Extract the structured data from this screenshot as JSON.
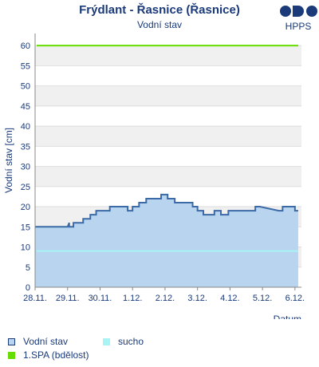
{
  "header": {
    "title": "Frýdlant - Řasnice (Řasnice)",
    "subtitle": "Vodní stav",
    "logo_text": "HPPS"
  },
  "colors": {
    "line": "#3b6aa6",
    "fill": "#b8d4ee",
    "sucho": "#a8f4f4",
    "spa": "#66dd00",
    "band": "#f0f0f0",
    "text": "#1a3a7a"
  },
  "chart_data": {
    "type": "area",
    "title": "Frýdlant - Řasnice (Řasnice)",
    "subtitle": "Vodní stav",
    "xlabel": "Datum",
    "ylabel": "Vodní stav [cm]",
    "ylim": [
      0,
      63
    ],
    "yticks": [
      0,
      5,
      10,
      15,
      20,
      25,
      30,
      35,
      40,
      45,
      50,
      55,
      60
    ],
    "xlim": [
      0,
      8.2
    ],
    "xtick_labels": [
      "28.11.",
      "29.11.",
      "30.11.",
      "1.12.",
      "2.12.",
      "3.12.",
      "4.12.",
      "5.12.",
      "6.12."
    ],
    "x_unit": "days since 28.11. 00:00",
    "grid": true,
    "series": [
      {
        "name": "Vodní stav",
        "x": [
          0.0,
          1.0,
          1.05,
          1.05,
          1.18,
          1.18,
          1.48,
          1.48,
          1.7,
          1.7,
          1.88,
          1.88,
          2.1,
          2.1,
          2.3,
          2.3,
          2.85,
          2.85,
          3.0,
          3.0,
          3.2,
          3.2,
          3.42,
          3.42,
          3.88,
          3.88,
          4.08,
          4.08,
          4.3,
          4.3,
          4.85,
          4.85,
          5.0,
          5.0,
          5.18,
          5.18,
          5.52,
          5.52,
          5.72,
          5.72,
          5.95,
          5.95,
          6.78,
          6.78,
          6.92,
          6.92,
          7.5,
          7.5,
          7.62,
          7.62,
          8.0,
          8.0,
          8.1
        ],
        "values": [
          15,
          15,
          16,
          15,
          15,
          16,
          16,
          17,
          17,
          18,
          18,
          19,
          19,
          19,
          19,
          20,
          20,
          19,
          19,
          20,
          20,
          21,
          21,
          22,
          22,
          23,
          23,
          22,
          22,
          21,
          21,
          20,
          20,
          19,
          19,
          18,
          18,
          19,
          19,
          18,
          18,
          19,
          19,
          20,
          20,
          20,
          19,
          19,
          19,
          20,
          20,
          19,
          19
        ]
      }
    ],
    "thresholds": [
      {
        "name": "sucho",
        "value": 9
      },
      {
        "name": "1.SPA (bdělost)",
        "value": 60
      }
    ]
  },
  "legend": {
    "items": [
      {
        "label": "Vodní stav"
      },
      {
        "label": "sucho"
      },
      {
        "label": "1.SPA (bdělost)"
      }
    ]
  }
}
